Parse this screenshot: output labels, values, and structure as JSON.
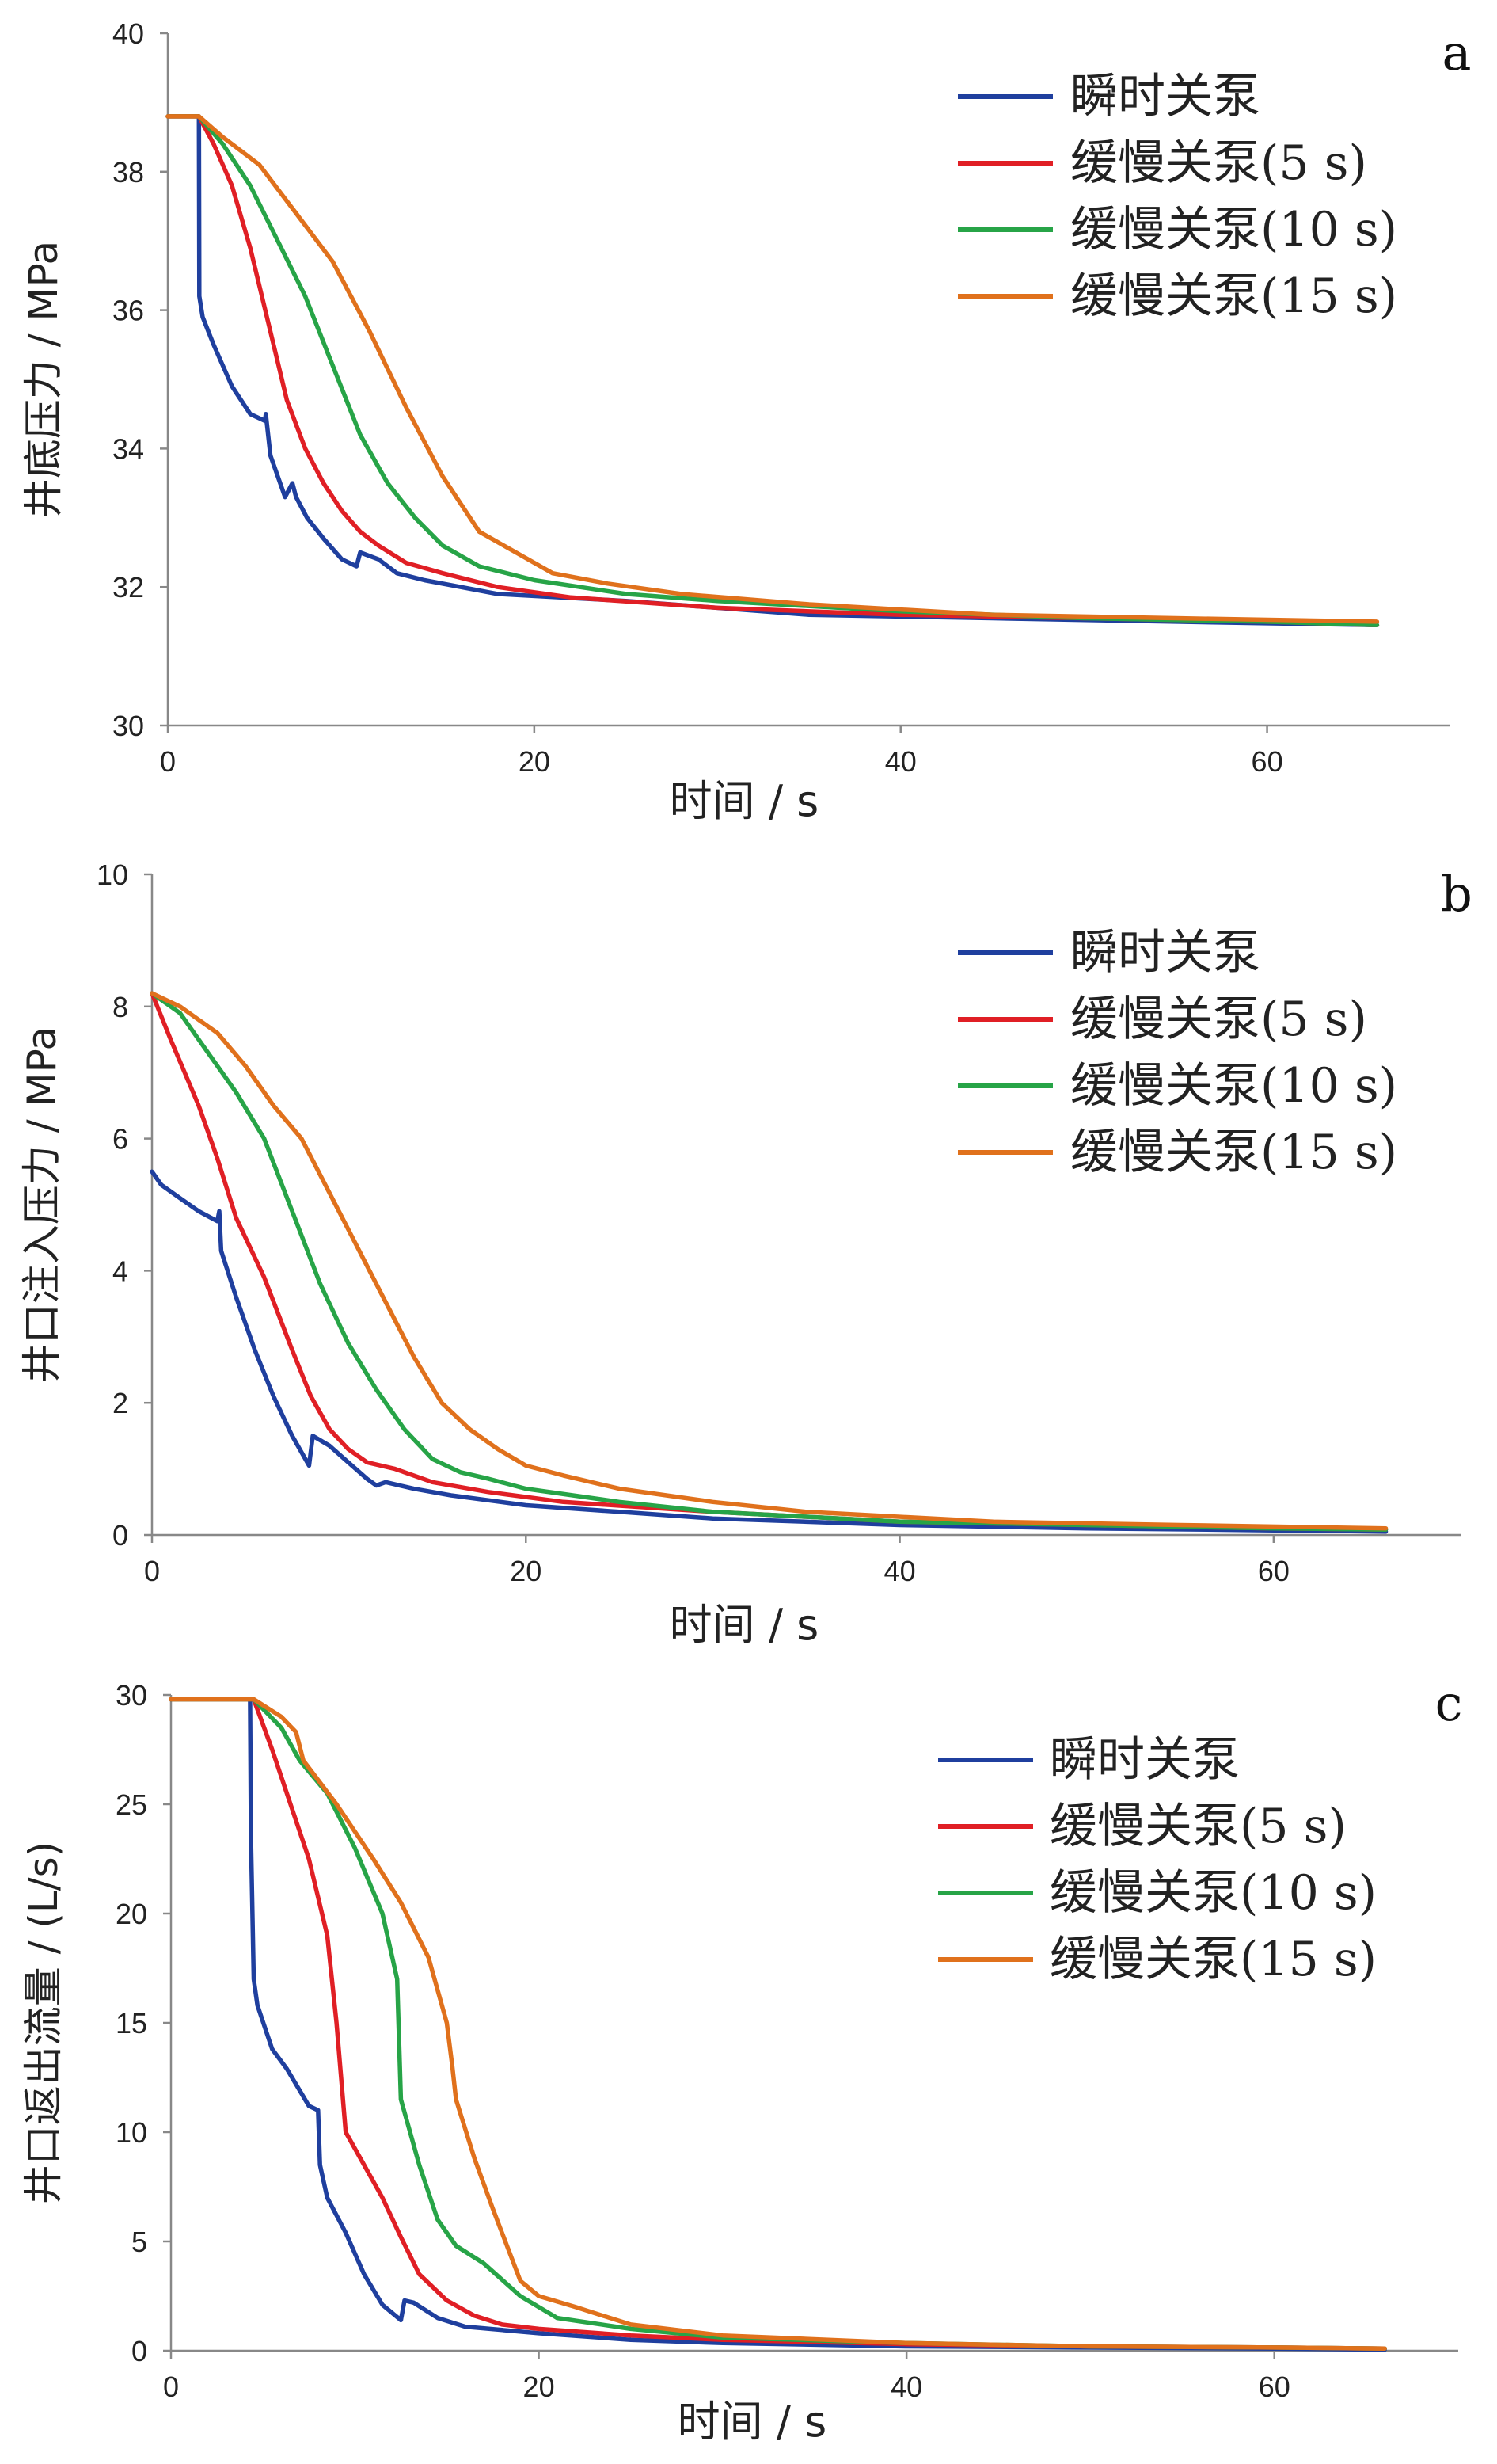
{
  "colors": {
    "instant": "#1f3f9e",
    "slow5": "#e01f25",
    "slow10": "#27a447",
    "slow15": "#e0711c"
  },
  "chart_data": [
    {
      "type": "line",
      "panel": "a",
      "xlabel": "时间 / s",
      "ylabel": "井底压力 / MPa",
      "xlim": [
        0,
        70
      ],
      "ylim": [
        30,
        40
      ],
      "xticks": [
        0,
        20,
        40,
        60
      ],
      "yticks": [
        30,
        32,
        34,
        36,
        38,
        40
      ],
      "legend_position": "top-right",
      "series": [
        {
          "name": "瞬时关泵",
          "color": "#1f3f9e",
          "x": [
            0,
            1.7,
            1.72,
            1.9,
            2.5,
            3.5,
            4.5,
            5.3,
            5.35,
            5.6,
            6.4,
            6.8,
            7.0,
            7.6,
            8.5,
            9.5,
            10.3,
            10.5,
            11.5,
            12.5,
            14,
            18,
            25,
            35,
            45,
            55,
            66
          ],
          "y": [
            38.8,
            38.8,
            36.2,
            35.9,
            35.5,
            34.9,
            34.5,
            34.4,
            34.5,
            33.9,
            33.3,
            33.5,
            33.3,
            33.0,
            32.7,
            32.4,
            32.3,
            32.5,
            32.4,
            32.2,
            32.1,
            31.9,
            31.8,
            31.6,
            31.55,
            31.5,
            31.45
          ]
        },
        {
          "name": "缓慢关泵(5 s)",
          "color": "#e01f25",
          "x": [
            0,
            1.7,
            2.5,
            3.5,
            4.5,
            5.5,
            6.5,
            7.5,
            8.5,
            9.5,
            10.5,
            11.5,
            13,
            15,
            18,
            22,
            30,
            40,
            50,
            60,
            66
          ],
          "y": [
            38.8,
            38.8,
            38.4,
            37.8,
            36.9,
            35.8,
            34.7,
            34.0,
            33.5,
            33.1,
            32.8,
            32.6,
            32.35,
            32.2,
            32.0,
            31.85,
            31.7,
            31.6,
            31.55,
            31.5,
            31.45
          ]
        },
        {
          "name": "缓慢关泵(10 s)",
          "color": "#27a447",
          "x": [
            0,
            1.7,
            3,
            4.5,
            6,
            7.5,
            9,
            10.5,
            12,
            13.5,
            15,
            17,
            20,
            25,
            30,
            40,
            50,
            60,
            66
          ],
          "y": [
            38.8,
            38.8,
            38.4,
            37.8,
            37.0,
            36.2,
            35.2,
            34.2,
            33.5,
            33.0,
            32.6,
            32.3,
            32.1,
            31.9,
            31.8,
            31.65,
            31.55,
            31.5,
            31.45
          ]
        },
        {
          "name": "缓慢关泵(15 s)",
          "color": "#e0711c",
          "x": [
            0,
            1.7,
            3,
            5,
            7,
            9,
            11,
            13,
            15,
            17,
            19,
            21,
            24,
            28,
            35,
            45,
            55,
            66
          ],
          "y": [
            38.8,
            38.8,
            38.5,
            38.1,
            37.4,
            36.7,
            35.7,
            34.6,
            33.6,
            32.8,
            32.5,
            32.2,
            32.05,
            31.9,
            31.75,
            31.6,
            31.55,
            31.5
          ]
        }
      ]
    },
    {
      "type": "line",
      "panel": "b",
      "xlabel": "时间 / s",
      "ylabel": "井口注入压力 / MPa",
      "xlim": [
        0,
        70
      ],
      "ylim": [
        0,
        10
      ],
      "xticks": [
        0,
        20,
        40,
        60
      ],
      "yticks": [
        0,
        2,
        4,
        6,
        8,
        10
      ],
      "legend_position": "top-right",
      "series": [
        {
          "name": "瞬时关泵",
          "color": "#1f3f9e",
          "x": [
            0,
            0.5,
            1.5,
            2.5,
            3.5,
            3.6,
            3.7,
            4.5,
            5.5,
            6.5,
            7.5,
            8.4,
            8.6,
            9.5,
            10.5,
            11.5,
            12,
            12.5,
            14,
            16,
            20,
            25,
            30,
            40,
            50,
            60,
            66
          ],
          "y": [
            5.5,
            5.3,
            5.1,
            4.9,
            4.75,
            4.9,
            4.3,
            3.6,
            2.8,
            2.1,
            1.5,
            1.05,
            1.5,
            1.35,
            1.1,
            0.85,
            0.75,
            0.8,
            0.7,
            0.6,
            0.45,
            0.35,
            0.25,
            0.15,
            0.1,
            0.07,
            0.05
          ]
        },
        {
          "name": "缓慢关泵(5 s)",
          "color": "#e01f25",
          "x": [
            0,
            1,
            2.5,
            3.5,
            4.5,
            6,
            7.5,
            8.5,
            9.5,
            10.5,
            11.5,
            13,
            15,
            18,
            22,
            30,
            40,
            50,
            60,
            66
          ],
          "y": [
            8.2,
            7.5,
            6.5,
            5.7,
            4.8,
            3.9,
            2.8,
            2.1,
            1.6,
            1.3,
            1.1,
            1.0,
            0.8,
            0.65,
            0.5,
            0.35,
            0.2,
            0.15,
            0.1,
            0.08
          ]
        },
        {
          "name": "缓慢关泵(10 s)",
          "color": "#27a447",
          "x": [
            0,
            1.5,
            3,
            4.5,
            6,
            7.5,
            9,
            10.5,
            12,
            13.5,
            15,
            16.5,
            18,
            20,
            25,
            30,
            40,
            50,
            60,
            66
          ],
          "y": [
            8.2,
            7.9,
            7.3,
            6.7,
            6.0,
            4.9,
            3.8,
            2.9,
            2.2,
            1.6,
            1.15,
            0.95,
            0.85,
            0.7,
            0.5,
            0.35,
            0.2,
            0.15,
            0.1,
            0.08
          ]
        },
        {
          "name": "缓慢关泵(15 s)",
          "color": "#e0711c",
          "x": [
            0,
            1.5,
            3.5,
            5,
            6.5,
            8,
            10,
            12,
            14,
            15.5,
            17,
            18.5,
            20,
            22,
            25,
            30,
            35,
            45,
            55,
            66
          ],
          "y": [
            8.2,
            8.0,
            7.6,
            7.1,
            6.5,
            6.0,
            4.9,
            3.8,
            2.7,
            2.0,
            1.6,
            1.3,
            1.05,
            0.9,
            0.7,
            0.5,
            0.35,
            0.2,
            0.15,
            0.1
          ]
        }
      ]
    },
    {
      "type": "line",
      "panel": "c",
      "xlabel": "时间 / s",
      "ylabel": "井口返出流量 / (L/s)",
      "xlim": [
        0,
        70
      ],
      "ylim": [
        0,
        30
      ],
      "xticks": [
        0,
        20,
        40,
        60
      ],
      "yticks": [
        0,
        5,
        10,
        15,
        20,
        25,
        30
      ],
      "legend_position": "top-right",
      "series": [
        {
          "name": "瞬时关泵",
          "color": "#1f3f9e",
          "x": [
            0,
            4.3,
            4.35,
            4.5,
            4.7,
            5.5,
            6.3,
            7.5,
            8,
            8.1,
            8.5,
            9.5,
            10.5,
            11.5,
            12.5,
            12.7,
            13.2,
            14.5,
            16,
            20,
            25,
            30,
            40,
            50,
            60,
            66
          ],
          "y": [
            29.8,
            29.8,
            23.5,
            17,
            15.8,
            13.8,
            12.9,
            11.2,
            11.0,
            8.5,
            7.0,
            5.4,
            3.5,
            2.1,
            1.4,
            2.3,
            2.2,
            1.5,
            1.1,
            0.8,
            0.5,
            0.35,
            0.2,
            0.15,
            0.1,
            0.05
          ]
        },
        {
          "name": "缓慢关泵(5 s)",
          "color": "#e01f25",
          "x": [
            0,
            4.5,
            5.5,
            6.5,
            7.5,
            8.5,
            9,
            9.5,
            10.5,
            11.5,
            12.5,
            13.5,
            15,
            16.5,
            18,
            20,
            25,
            30,
            40,
            50,
            60,
            66
          ],
          "y": [
            29.8,
            29.8,
            27.5,
            25.0,
            22.5,
            19.0,
            15.0,
            10.0,
            8.5,
            7.0,
            5.2,
            3.5,
            2.3,
            1.6,
            1.2,
            1.0,
            0.7,
            0.5,
            0.3,
            0.2,
            0.15,
            0.1
          ]
        },
        {
          "name": "缓慢关泵(10 s)",
          "color": "#27a447",
          "x": [
            0,
            4.5,
            6,
            7,
            8.5,
            10,
            11.5,
            12.3,
            12.5,
            13.5,
            14.5,
            15.5,
            17,
            19,
            21,
            25,
            30,
            40,
            50,
            60,
            66
          ],
          "y": [
            29.8,
            29.8,
            28.5,
            27.0,
            25.5,
            23.0,
            20.0,
            17.0,
            11.5,
            8.5,
            6.0,
            4.8,
            4.0,
            2.5,
            1.5,
            1.0,
            0.6,
            0.35,
            0.2,
            0.15,
            0.1
          ]
        },
        {
          "name": "缓慢关泵(15 s)",
          "color": "#e0711c",
          "x": [
            0,
            4.5,
            6,
            6.8,
            7.2,
            9,
            11,
            12.5,
            14,
            15,
            15.3,
            15.5,
            16.5,
            17.5,
            19,
            20,
            22,
            25,
            30,
            40,
            50,
            60,
            66
          ],
          "y": [
            29.8,
            29.8,
            29.0,
            28.3,
            27.0,
            25.0,
            22.5,
            20.5,
            18.0,
            15.0,
            13.0,
            11.5,
            8.8,
            6.5,
            3.2,
            2.5,
            2.0,
            1.2,
            0.7,
            0.35,
            0.2,
            0.15,
            0.1
          ]
        }
      ]
    }
  ]
}
